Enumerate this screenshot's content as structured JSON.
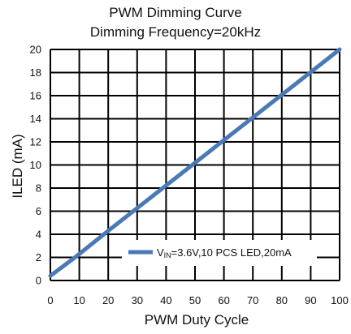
{
  "chart_data": {
    "type": "line",
    "title": "PWM Dimming Curve",
    "subtitle": "Dimming Frequency=20kHz",
    "xlabel": "PWM  Duty Cycle",
    "ylabel": "ILED (mA)",
    "xlim": [
      0,
      100
    ],
    "ylim": [
      0,
      20
    ],
    "xticks": [
      "0",
      "10",
      "20",
      "30",
      "40",
      "50",
      "60",
      "70",
      "80",
      "90",
      "100"
    ],
    "yticks": [
      "0",
      "2",
      "4",
      "6",
      "8",
      "10",
      "12",
      "14",
      "16",
      "18",
      "20"
    ],
    "grid": true,
    "legend_position": "bottom-right",
    "series": [
      {
        "legend_main": "V",
        "legend_sub": "IN",
        "legend_rest": "=3.6V,10 PCS LED,20mA",
        "color": "#4a7ab5",
        "x": [
          0,
          8,
          20,
          100
        ],
        "y": [
          0.4,
          1.9,
          4.3,
          20
        ]
      }
    ]
  }
}
